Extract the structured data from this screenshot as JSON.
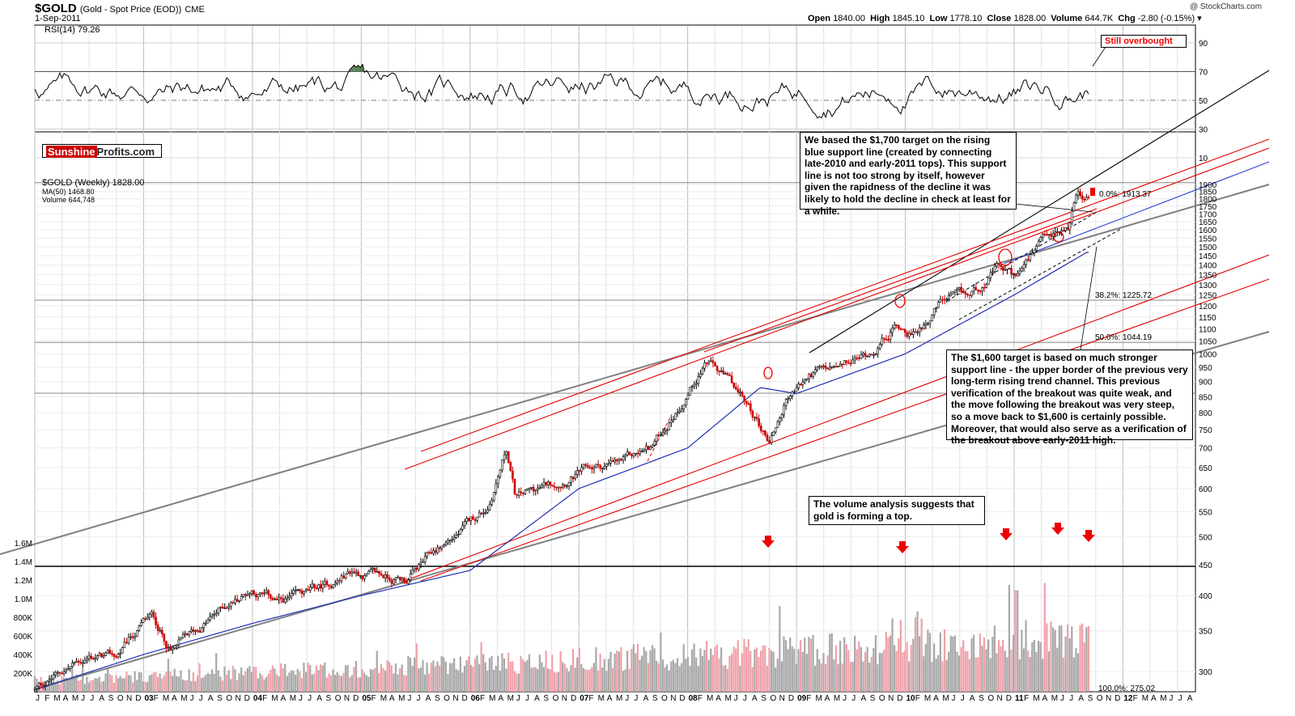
{
  "header": {
    "symbol": "$GOLD",
    "description": "(Gold - Spot Price (EOD))",
    "exchange": "CME",
    "date": "1-Sep-2011",
    "watermark": "@ StockCharts.com",
    "open_label": "Open",
    "open": "1840.00",
    "high_label": "High",
    "high": "1845.10",
    "low_label": "Low",
    "low": "1778.10",
    "close_label": "Close",
    "close": "1828.00",
    "volume_label": "Volume",
    "volume": "644.7K",
    "chg_label": "Chg",
    "chg": "-2.80 (-0.15%)"
  },
  "rsi": {
    "label": "RSI(14) 79.26",
    "levels": [
      90,
      70,
      50,
      30,
      10
    ]
  },
  "logo": {
    "part1": "Sunshine",
    "part2": "Profits.com"
  },
  "legend": {
    "price": "$GOLD (Weekly) 1828.00",
    "ma": "MA(50) 1468.80",
    "volume": "Volume 644,748"
  },
  "annotations": {
    "overbought": "Still overbought",
    "target1700": "We based the $1,700 target on the rising blue support line (created by connecting late-2010 and early-2011 tops). This support line is not too strong by itself, however given the rapidness of the decline it was likely to hold the decline in check at least for a while.",
    "target1600": "The $1,600 target is based on much stronger support line - the upper border of the previous very long-term rising trend channel. This previous verification of the breakout was quite weak, and the move following the breakout was very steep, so a move back to $1,600 is certainly possible. Moreover, that would also serve as a verification of the breakout above early-2011 high.",
    "volume_note": "The volume analysis suggests that gold is forming a top."
  },
  "fib_labels": [
    "0.0%: 1913.37",
    "38.2%: 1225.72",
    "50.0%: 1044.19",
    "100.0%: 275.02"
  ],
  "colors": {
    "up": "#000000",
    "down": "#cc0000",
    "ma": "#1f2fb3",
    "rsi_fill": "#4f7a4f",
    "trend_red": "#e60000",
    "trend_gray": "#808080",
    "trend_blue": "#2a3fd6"
  },
  "chart_data": {
    "type": "line",
    "title": "$GOLD (Gold - Spot Price (EOD)) CME",
    "x_start": "2002-01",
    "x_end": "2012-08",
    "y_scale": "log",
    "ylim": [
      285,
      1960
    ],
    "y_ticks": [
      300,
      350,
      400,
      450,
      500,
      550,
      600,
      650,
      700,
      750,
      800,
      850,
      900,
      950,
      1000,
      1050,
      1100,
      1150,
      1200,
      1250,
      1300,
      1350,
      1400,
      1450,
      1500,
      1550,
      1600,
      1650,
      1700,
      1750,
      1800,
      1850,
      1900
    ],
    "volume_ticks": [
      "200K",
      "400K",
      "600K",
      "800K",
      "1.0M",
      "1.2M",
      "1.4M",
      "1.6M"
    ],
    "year_labels": [
      "03",
      "04",
      "05",
      "06",
      "07",
      "08",
      "09",
      "10",
      "11",
      "12"
    ],
    "series": [
      {
        "name": "$GOLD (Weekly)",
        "x": [
          "2002-01",
          "2002-04",
          "2002-07",
          "2002-10",
          "2003-01",
          "2003-02",
          "2003-04",
          "2003-07",
          "2003-10",
          "2004-01",
          "2004-04",
          "2004-07",
          "2004-10",
          "2004-12",
          "2005-03",
          "2005-06",
          "2005-09",
          "2005-12",
          "2006-03",
          "2006-05",
          "2006-06",
          "2006-09",
          "2006-12",
          "2007-03",
          "2007-06",
          "2007-09",
          "2007-12",
          "2008-03",
          "2008-06",
          "2008-08",
          "2008-10",
          "2008-12",
          "2009-03",
          "2009-06",
          "2009-09",
          "2009-12",
          "2010-02",
          "2010-05",
          "2010-08",
          "2010-11",
          "2011-01",
          "2011-04",
          "2011-07",
          "2011-08",
          "2011-09"
        ],
        "values": [
          280,
          300,
          318,
          316,
          360,
          368,
          325,
          350,
          385,
          410,
          390,
          400,
          420,
          440,
          430,
          425,
          470,
          510,
          560,
          700,
          580,
          600,
          630,
          650,
          660,
          700,
          820,
          980,
          880,
          800,
          720,
          850,
          930,
          940,
          1000,
          1120,
          1080,
          1220,
          1230,
          1380,
          1330,
          1500,
          1600,
          1880,
          1828
        ]
      },
      {
        "name": "MA(50)",
        "x": [
          "2002-01",
          "2003-01",
          "2004-01",
          "2005-01",
          "2006-01",
          "2007-01",
          "2008-01",
          "2008-09",
          "2009-01",
          "2010-01",
          "2011-01",
          "2011-09"
        ],
        "values": [
          280,
          320,
          360,
          400,
          440,
          600,
          700,
          880,
          860,
          1000,
          1250,
          1468.8
        ]
      }
    ]
  }
}
